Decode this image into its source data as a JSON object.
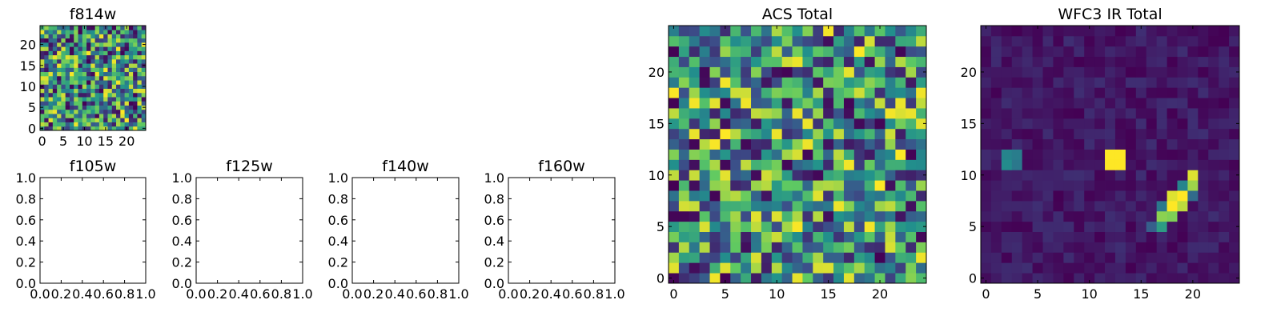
{
  "chart_data": [
    {
      "type": "heatmap",
      "title": "f814w",
      "rows": 25,
      "cols": 25,
      "xticks": [
        "0",
        "5",
        "10",
        "15",
        "20"
      ],
      "yticks": [
        "0",
        "5",
        "10",
        "15",
        "20"
      ],
      "xlim": [
        -0.5,
        24.5
      ],
      "ylim": [
        -0.5,
        24.5
      ],
      "colormap": "viridis",
      "pattern": "uniform noise",
      "seed": 814,
      "colorscale": [
        "#440154",
        "#3b528b",
        "#21918c",
        "#5ec962",
        "#fde725"
      ]
    },
    {
      "type": "heatmap",
      "title": "f105w",
      "empty": true,
      "xticks": [
        "0.0",
        "0.2",
        "0.4",
        "0.6",
        "0.8",
        "1.0"
      ],
      "yticks": [
        "0.0",
        "0.2",
        "0.4",
        "0.6",
        "0.8",
        "1.0"
      ],
      "xlim": [
        0,
        1
      ],
      "ylim": [
        0,
        1
      ]
    },
    {
      "type": "heatmap",
      "title": "f125w",
      "empty": true,
      "xticks": [
        "0.0",
        "0.2",
        "0.4",
        "0.6",
        "0.8",
        "1.0"
      ],
      "yticks": [
        "0.0",
        "0.2",
        "0.4",
        "0.6",
        "0.8",
        "1.0"
      ],
      "xlim": [
        0,
        1
      ],
      "ylim": [
        0,
        1
      ]
    },
    {
      "type": "heatmap",
      "title": "f140w",
      "empty": true,
      "xticks": [
        "0.0",
        "0.2",
        "0.4",
        "0.6",
        "0.8",
        "1.0"
      ],
      "yticks": [
        "0.0",
        "0.2",
        "0.4",
        "0.6",
        "0.8",
        "1.0"
      ],
      "xlim": [
        0,
        1
      ],
      "ylim": [
        0,
        1
      ]
    },
    {
      "type": "heatmap",
      "title": "f160w",
      "empty": true,
      "xticks": [
        "0.0",
        "0.2",
        "0.4",
        "0.6",
        "0.8",
        "1.0"
      ],
      "yticks": [
        "0.0",
        "0.2",
        "0.4",
        "0.6",
        "0.8",
        "1.0"
      ],
      "xlim": [
        0,
        1
      ],
      "ylim": [
        0,
        1
      ]
    },
    {
      "type": "heatmap",
      "title": "ACS Total",
      "rows": 25,
      "cols": 25,
      "xticks": [
        "0",
        "5",
        "10",
        "15",
        "20"
      ],
      "yticks": [
        "0",
        "5",
        "10",
        "15",
        "20"
      ],
      "xlim": [
        -0.5,
        24.5
      ],
      "ylim": [
        -0.5,
        24.5
      ],
      "colormap": "viridis",
      "pattern": "uniform noise",
      "seed": 2016,
      "colorscale": [
        "#440154",
        "#3b528b",
        "#21918c",
        "#5ec962",
        "#fde725"
      ]
    },
    {
      "type": "heatmap",
      "title": "WFC3 IR Total",
      "rows": 25,
      "cols": 25,
      "xticks": [
        "0",
        "5",
        "10",
        "15",
        "20"
      ],
      "yticks": [
        "0",
        "5",
        "10",
        "15",
        "20"
      ],
      "xlim": [
        -0.5,
        24.5
      ],
      "ylim": [
        -0.5,
        24.5
      ],
      "colormap": "viridis",
      "pattern": "faint background with sources",
      "seed": 3,
      "background_range": [
        0.0,
        0.14
      ],
      "sources": [
        {
          "x": 2,
          "y": 11,
          "v": 0.48
        },
        {
          "x": 2,
          "y": 12,
          "v": 0.45
        },
        {
          "x": 3,
          "y": 11,
          "v": 0.4
        },
        {
          "x": 3,
          "y": 12,
          "v": 0.42
        },
        {
          "x": 12,
          "y": 11,
          "v": 1.0
        },
        {
          "x": 12,
          "y": 12,
          "v": 1.0
        },
        {
          "x": 13,
          "y": 11,
          "v": 1.0
        },
        {
          "x": 13,
          "y": 12,
          "v": 1.0
        },
        {
          "x": 20,
          "y": 10,
          "v": 0.95
        },
        {
          "x": 20,
          "y": 9,
          "v": 0.85
        },
        {
          "x": 19,
          "y": 8,
          "v": 1.0
        },
        {
          "x": 18,
          "y": 8,
          "v": 0.95
        },
        {
          "x": 18,
          "y": 7,
          "v": 1.0
        },
        {
          "x": 19,
          "y": 7,
          "v": 0.9
        },
        {
          "x": 17,
          "y": 6,
          "v": 0.82
        },
        {
          "x": 18,
          "y": 6,
          "v": 0.8
        },
        {
          "x": 17,
          "y": 5,
          "v": 0.55
        },
        {
          "x": 19,
          "y": 9,
          "v": 0.45
        },
        {
          "x": 20,
          "y": 8,
          "v": 0.35
        },
        {
          "x": 16,
          "y": 5,
          "v": 0.3
        },
        {
          "x": 17,
          "y": 7,
          "v": 0.4
        }
      ],
      "colorscale": [
        "#440154",
        "#3b528b",
        "#21918c",
        "#5ec962",
        "#fde725"
      ]
    }
  ]
}
